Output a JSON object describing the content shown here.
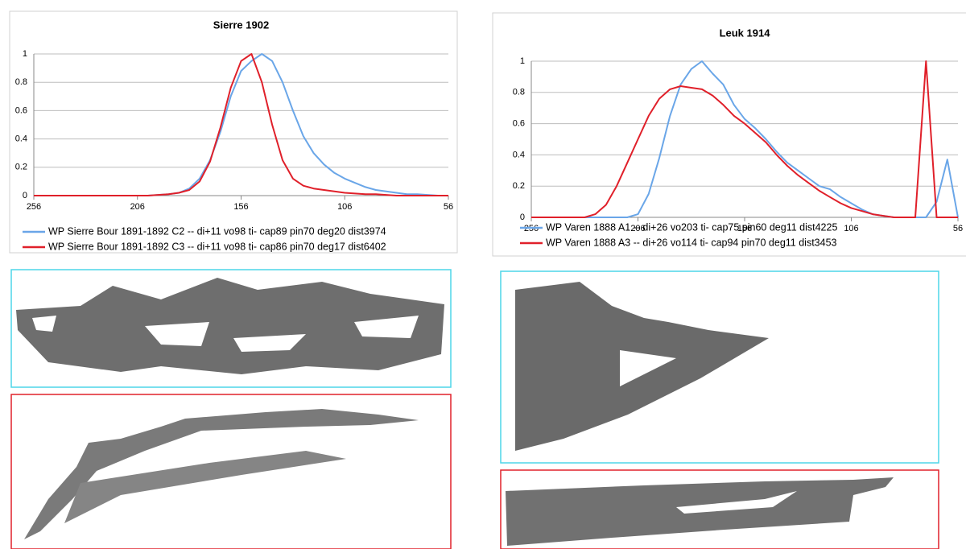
{
  "chart_data": [
    {
      "type": "line",
      "title": "Sierre 1902",
      "x": [
        256,
        251,
        246,
        241,
        236,
        231,
        226,
        221,
        216,
        211,
        206,
        201,
        196,
        191,
        186,
        181,
        176,
        171,
        166,
        161,
        156,
        151,
        146,
        141,
        136,
        131,
        126,
        121,
        116,
        111,
        106,
        101,
        96,
        91,
        86,
        81,
        76,
        71,
        66,
        61,
        56
      ],
      "series": [
        {
          "name": "WP Sierre Bour 1891-1892 C2 -- di+11 vo98 ti- cap89 pin70 deg20 dist3974",
          "color": "#6aa6e8",
          "values": [
            0,
            0,
            0,
            0,
            0,
            0,
            0,
            0,
            0,
            0,
            0,
            0,
            0.005,
            0.01,
            0.02,
            0.05,
            0.12,
            0.25,
            0.45,
            0.7,
            0.88,
            0.95,
            1,
            0.95,
            0.8,
            0.6,
            0.42,
            0.3,
            0.22,
            0.16,
            0.12,
            0.09,
            0.06,
            0.04,
            0.03,
            0.02,
            0.01,
            0.01,
            0.005,
            0,
            0
          ]
        },
        {
          "name": "WP Sierre Bour 1891-1892 C3 -- di+11 vo98 ti- cap86 pin70 deg17 dist6402",
          "color": "#e0202a",
          "values": [
            0,
            0,
            0,
            0,
            0,
            0,
            0,
            0,
            0,
            0,
            0,
            0,
            0.005,
            0.01,
            0.02,
            0.04,
            0.1,
            0.24,
            0.48,
            0.76,
            0.95,
            1,
            0.8,
            0.5,
            0.25,
            0.12,
            0.07,
            0.05,
            0.04,
            0.03,
            0.02,
            0.015,
            0.01,
            0.01,
            0.005,
            0,
            0,
            0,
            0,
            0,
            0
          ]
        }
      ],
      "xlim": [
        256,
        56
      ],
      "xticks": [
        256,
        206,
        156,
        106,
        56
      ],
      "ylim": [
        0,
        1
      ],
      "yticks": [
        0,
        0.2,
        0.4,
        0.6,
        0.8,
        1
      ],
      "grid": true,
      "legend": "bottom"
    },
    {
      "type": "line",
      "title": "Leuk 1914",
      "x": [
        256,
        251,
        246,
        241,
        236,
        231,
        226,
        221,
        216,
        211,
        206,
        201,
        196,
        191,
        186,
        181,
        176,
        171,
        166,
        161,
        156,
        151,
        146,
        141,
        136,
        131,
        126,
        121,
        116,
        111,
        106,
        101,
        96,
        91,
        86,
        81,
        76,
        71,
        66,
        61,
        56
      ],
      "series": [
        {
          "name": "WP Varen 1888 A1 -- di+26 vo203 ti- cap75 pin60 deg11 dist4225",
          "color": "#6aa6e8",
          "values": [
            0,
            0,
            0,
            0,
            0,
            0,
            0,
            0,
            0,
            0,
            0.02,
            0.15,
            0.38,
            0.65,
            0.85,
            0.95,
            1,
            0.92,
            0.85,
            0.72,
            0.63,
            0.57,
            0.5,
            0.42,
            0.35,
            0.3,
            0.25,
            0.2,
            0.18,
            0.13,
            0.09,
            0.05,
            0.02,
            0.01,
            0,
            0,
            0,
            0,
            0.1,
            0.37,
            0
          ]
        },
        {
          "name": "WP Varen 1888 A3 -- di+26 vo114 ti- cap94 pin70 deg11 dist3453",
          "color": "#e0202a",
          "values": [
            0,
            0,
            0,
            0,
            0,
            0,
            0.02,
            0.08,
            0.2,
            0.35,
            0.5,
            0.65,
            0.76,
            0.82,
            0.84,
            0.83,
            0.82,
            0.78,
            0.72,
            0.65,
            0.6,
            0.54,
            0.48,
            0.4,
            0.33,
            0.27,
            0.22,
            0.17,
            0.13,
            0.09,
            0.06,
            0.04,
            0.02,
            0.01,
            0,
            0,
            0,
            1,
            0,
            0,
            0
          ]
        }
      ],
      "xlim": [
        256,
        56
      ],
      "xticks": [
        256,
        206,
        156,
        106,
        56
      ],
      "ylim": [
        0,
        1
      ],
      "yticks": [
        0,
        0.2,
        0.4,
        0.6,
        0.8,
        1
      ],
      "grid": true,
      "legend": "bottom"
    }
  ]
}
